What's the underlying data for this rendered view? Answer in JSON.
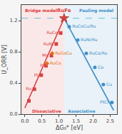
{
  "chart_data": {
    "type": "scatter",
    "xlabel": "ΔG₀* [eV]",
    "ylabel": "U_ORR [V]",
    "xlim": [
      -0.1,
      2.7
    ],
    "ylim": [
      0.0,
      1.4
    ],
    "xticks": [
      {
        "value": 0.0,
        "label": "0.0"
      },
      0.5,
      {
        "value": 1.0,
        "label": "1.0"
      },
      1.5,
      {
        "value": 2.0,
        "label": "2.0"
      },
      2.5
    ],
    "yticks": [
      {
        "value": 0.0,
        "label": "0.0"
      },
      0.4,
      0.8,
      1.2
    ],
    "grid": false,
    "series": [
      {
        "type": "line",
        "line_style": "solid",
        "color": "#d94040",
        "x": [
          0.0,
          1.15
        ],
        "values": [
          0.08,
          1.23
        ]
      },
      {
        "type": "line",
        "line_style": "solid",
        "color": "#4090c8",
        "x": [
          1.15,
          2.6
        ],
        "values": [
          1.23,
          0.05
        ]
      },
      {
        "type": "scatter",
        "marker": "square",
        "color": "#d94040",
        "x": [
          0.12,
          0.28,
          0.48,
          0.62,
          0.78,
          0.92,
          1.05
        ],
        "values": [
          0.17,
          0.32,
          0.5,
          0.62,
          0.75,
          0.9,
          1.04
        ],
        "labels": [
          null,
          "Ru",
          "Pt",
          "Ir",
          "Mn",
          "RuNi",
          "RuCo"
        ]
      },
      {
        "type": "scatter",
        "marker": "circle",
        "color": "#4090c8",
        "x": [
          1.3,
          1.55,
          1.8,
          2.05,
          2.3,
          2.55
        ],
        "values": [
          1.12,
          0.95,
          0.78,
          0.6,
          0.38,
          0.15
        ],
        "labels": [
          "RuCoCu/Ru",
          "RuNi/Ru",
          "RuCo/Ru",
          "Co",
          "Cu",
          "PtCr"
        ]
      },
      {
        "type": "scatter",
        "marker": "diamond",
        "color": "#e07020",
        "x": [
          0.65,
          0.8
        ],
        "values": [
          0.65,
          0.78
        ],
        "labels": [
          "RuCo",
          "RuCoCu"
        ]
      },
      {
        "type": "scatter",
        "marker": "star",
        "color": "#d94040",
        "x": [
          1.15
        ],
        "values": [
          1.23
        ],
        "labels": [
          "RuFe"
        ]
      }
    ],
    "reference_lines": [
      {
        "y": 1.23,
        "color": "#60c0e0",
        "line_style": "dashed"
      }
    ],
    "regions": [
      {
        "from": -0.1,
        "to": 1.15,
        "color": "#d94040"
      },
      {
        "from": 1.15,
        "to": 2.7,
        "color": "#4090c8"
      }
    ],
    "annotations": [
      {
        "text": "Bridge model",
        "color": "#d94040"
      },
      {
        "text": "Dissociative",
        "color": "#d94040"
      },
      {
        "text": "Pauling model",
        "color": "#4090c8"
      },
      {
        "text": "Associative",
        "color": "#4090c8"
      }
    ]
  }
}
